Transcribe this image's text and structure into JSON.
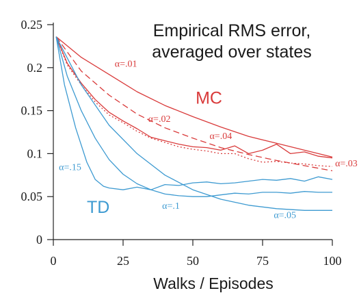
{
  "chart_data": {
    "type": "line",
    "title": "Empirical RMS error,",
    "subtitle": "averaged over states",
    "xlabel": "Walks / Episodes",
    "ylabel": "",
    "xlim": [
      0,
      100
    ],
    "ylim": [
      0,
      0.25
    ],
    "x_ticks": [
      "0",
      "25",
      "50",
      "75",
      "100"
    ],
    "y_ticks": [
      "0",
      "0.05",
      "0.1",
      "0.15",
      "0.2",
      "0.25"
    ],
    "grid": false,
    "groups": {
      "mc": {
        "label": "MC",
        "color": "#d93a3a"
      },
      "td": {
        "label": "TD",
        "color": "#3d9ad1"
      }
    },
    "series": [
      {
        "name": "α=.01",
        "group": "mc",
        "style": "solid",
        "x": [
          1,
          10,
          20,
          30,
          40,
          50,
          60,
          70,
          80,
          90,
          100
        ],
        "y": [
          0.236,
          0.212,
          0.192,
          0.172,
          0.156,
          0.143,
          0.131,
          0.12,
          0.112,
          0.104,
          0.096
        ]
      },
      {
        "name": "α=.02",
        "group": "mc",
        "style": "dashed",
        "x": [
          1,
          10,
          20,
          30,
          35,
          40,
          50,
          60,
          70,
          80,
          90,
          100
        ],
        "y": [
          0.236,
          0.196,
          0.168,
          0.146,
          0.138,
          0.13,
          0.118,
          0.107,
          0.099,
          0.092,
          0.086,
          0.08
        ]
      },
      {
        "name": "α=.04",
        "group": "mc",
        "style": "solid",
        "x": [
          1,
          5,
          10,
          15,
          20,
          25,
          30,
          35,
          40,
          45,
          50,
          55,
          60,
          65,
          70,
          75,
          80,
          85,
          90,
          95,
          100
        ],
        "y": [
          0.236,
          0.205,
          0.182,
          0.163,
          0.148,
          0.138,
          0.129,
          0.119,
          0.115,
          0.111,
          0.108,
          0.107,
          0.104,
          0.109,
          0.1,
          0.104,
          0.111,
          0.1,
          0.102,
          0.097,
          0.095
        ]
      },
      {
        "name": "α=.03",
        "group": "mc",
        "style": "dotted",
        "x": [
          1,
          5,
          10,
          15,
          20,
          25,
          30,
          35,
          40,
          45,
          50,
          55,
          60,
          65,
          70,
          75,
          80,
          85,
          90,
          95,
          100
        ],
        "y": [
          0.236,
          0.203,
          0.18,
          0.16,
          0.145,
          0.136,
          0.126,
          0.118,
          0.113,
          0.108,
          0.105,
          0.103,
          0.1,
          0.1,
          0.094,
          0.09,
          0.091,
          0.089,
          0.088,
          0.086,
          0.085
        ]
      },
      {
        "name": "α=.15",
        "group": "td",
        "style": "solid",
        "x": [
          1,
          4,
          8,
          12,
          15,
          18,
          20,
          25,
          30,
          35,
          40,
          45,
          50,
          55,
          60,
          65,
          70,
          75,
          80,
          85,
          90,
          95,
          100
        ],
        "y": [
          0.236,
          0.18,
          0.13,
          0.09,
          0.07,
          0.062,
          0.06,
          0.058,
          0.061,
          0.058,
          0.064,
          0.063,
          0.066,
          0.067,
          0.065,
          0.066,
          0.068,
          0.07,
          0.069,
          0.071,
          0.068,
          0.073,
          0.07
        ]
      },
      {
        "name": "α=.1",
        "group": "td",
        "style": "solid",
        "x": [
          1,
          5,
          10,
          15,
          20,
          25,
          30,
          35,
          40,
          45,
          50,
          55,
          60,
          65,
          70,
          75,
          80,
          85,
          90,
          95,
          100
        ],
        "y": [
          0.236,
          0.19,
          0.15,
          0.118,
          0.093,
          0.076,
          0.065,
          0.058,
          0.053,
          0.051,
          0.05,
          0.05,
          0.052,
          0.054,
          0.053,
          0.055,
          0.055,
          0.054,
          0.056,
          0.055,
          0.055
        ]
      },
      {
        "name": "α=.05",
        "group": "td",
        "style": "solid",
        "x": [
          1,
          10,
          20,
          30,
          40,
          50,
          60,
          70,
          80,
          90,
          100
        ],
        "y": [
          0.236,
          0.18,
          0.133,
          0.1,
          0.075,
          0.058,
          0.047,
          0.04,
          0.036,
          0.034,
          0.034
        ]
      }
    ],
    "annotations": [
      {
        "id": "mc-a01",
        "text": "α=.01",
        "x": 22,
        "y": 0.201,
        "group": "mc",
        "size": "small"
      },
      {
        "id": "mc-a02",
        "text": "α=.02",
        "x": 34,
        "y": 0.137,
        "group": "mc",
        "size": "small"
      },
      {
        "id": "mc-a04",
        "text": "α=.04",
        "x": 56,
        "y": 0.117,
        "group": "mc",
        "size": "small"
      },
      {
        "id": "mc-a03",
        "text": "α=.03",
        "x": 101,
        "y": 0.085,
        "group": "mc",
        "size": "small"
      },
      {
        "id": "mc-label",
        "text": "MC",
        "x": 51,
        "y": 0.158,
        "group": "mc",
        "size": "large"
      },
      {
        "id": "td-a15",
        "text": "α=.15",
        "x": 2,
        "y": 0.081,
        "group": "td",
        "size": "small"
      },
      {
        "id": "td-a1",
        "text": "α=.1",
        "x": 39,
        "y": 0.036,
        "group": "td",
        "size": "small"
      },
      {
        "id": "td-a05",
        "text": "α=.05",
        "x": 79,
        "y": 0.025,
        "group": "td",
        "size": "small"
      },
      {
        "id": "td-label",
        "text": "TD",
        "x": 12,
        "y": 0.031,
        "group": "td",
        "size": "large"
      }
    ]
  }
}
